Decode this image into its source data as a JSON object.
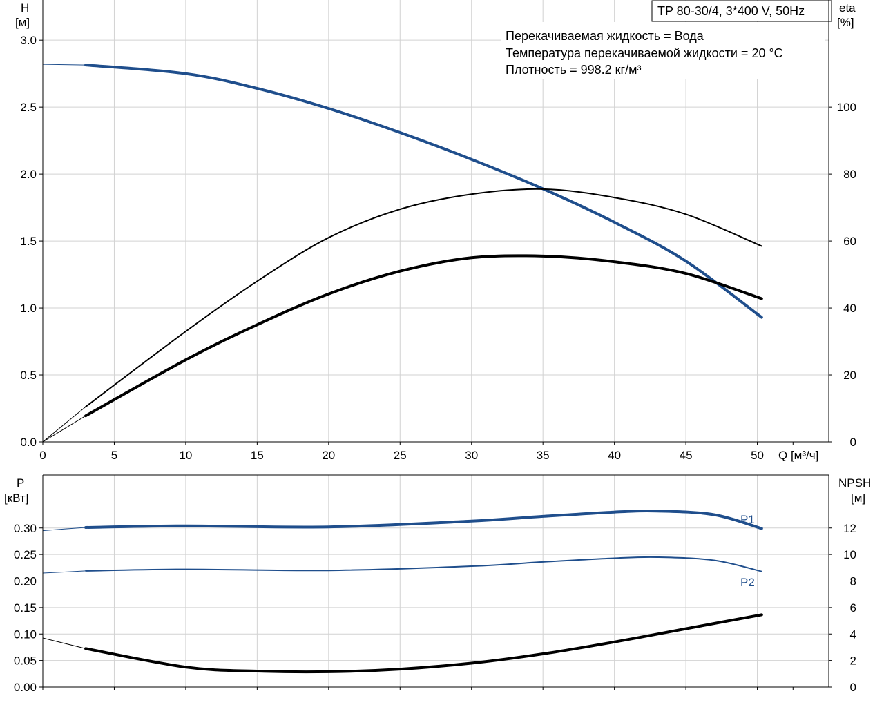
{
  "chart_data": [
    {
      "type": "line",
      "title": "TP 80-30/4, 3*400 V, 50Hz",
      "info_lines": [
        "Перекачиваемая жидкость = Вода",
        "Температура перекачиваемой жидкости = 20 °C",
        "Плотность = 998.2 кг/м³"
      ],
      "xlabel": "Q [м³/ч]",
      "xlim": [
        0,
        55
      ],
      "xticks": [
        0,
        5,
        10,
        15,
        20,
        25,
        30,
        35,
        40,
        45,
        50
      ],
      "y_left": {
        "label_line1": "H",
        "label_line2": "[м]",
        "lim": [
          0,
          3.3
        ],
        "ticks": [
          0.0,
          0.5,
          1.0,
          1.5,
          2.0,
          2.5,
          3.0
        ],
        "tick_labels": [
          "0.0",
          "0.5",
          "1.0",
          "1.5",
          "2.0",
          "2.5",
          "3.0"
        ]
      },
      "y_right": {
        "label_line1": "eta",
        "label_line2": "[%]",
        "lim": [
          0,
          132
        ],
        "ticks": [
          0,
          20,
          40,
          60,
          80,
          100
        ],
        "tick_labels": [
          "0",
          "20",
          "40",
          "60",
          "80",
          "100"
        ]
      },
      "grid": true,
      "series": [
        {
          "axis": "left",
          "color": "#1f4e8c",
          "width": 4,
          "extension": [
            [
              0,
              2.82
            ],
            [
              3,
              2.815
            ]
          ],
          "points": [
            [
              3,
              2.815
            ],
            [
              10,
              2.75
            ],
            [
              15,
              2.64
            ],
            [
              20,
              2.49
            ],
            [
              25,
              2.31
            ],
            [
              30,
              2.11
            ],
            [
              35,
              1.89
            ],
            [
              40,
              1.64
            ],
            [
              45,
              1.35
            ],
            [
              50.3,
              0.93
            ]
          ]
        },
        {
          "axis": "right",
          "color": "#000000",
          "width": 2,
          "extension": [
            [
              0,
              0
            ],
            [
              3,
              10.5
            ]
          ],
          "points": [
            [
              3,
              10.5
            ],
            [
              10,
              33
            ],
            [
              15,
              48
            ],
            [
              20,
              61
            ],
            [
              25,
              69.5
            ],
            [
              30,
              74
            ],
            [
              35,
              75.5
            ],
            [
              40,
              73
            ],
            [
              45,
              68
            ],
            [
              50.3,
              58.5
            ]
          ]
        },
        {
          "axis": "right",
          "color": "#000000",
          "width": 4,
          "extension": [
            [
              0,
              0
            ],
            [
              3,
              7.8
            ]
          ],
          "points": [
            [
              3,
              7.8
            ],
            [
              10,
              24.5
            ],
            [
              15,
              35
            ],
            [
              20,
              44.2
            ],
            [
              25,
              51
            ],
            [
              30,
              55
            ],
            [
              35,
              55.5
            ],
            [
              40,
              53.8
            ],
            [
              45,
              50.3
            ],
            [
              50.3,
              42.8
            ]
          ]
        }
      ]
    },
    {
      "type": "line",
      "xlim": [
        0,
        55
      ],
      "xticks": [
        0,
        5,
        10,
        15,
        20,
        25,
        30,
        35,
        40,
        45,
        50
      ],
      "y_left": {
        "label_line1": "P",
        "label_line2": "[кВт]",
        "lim": [
          0,
          0.4
        ],
        "ticks": [
          0.0,
          0.05,
          0.1,
          0.15,
          0.2,
          0.25,
          0.3
        ],
        "tick_labels": [
          "0.00",
          "0.05",
          "0.10",
          "0.15",
          "0.20",
          "0.25",
          "0.30"
        ]
      },
      "y_right": {
        "label_line1": "NPSH",
        "label_line2": "[м]",
        "lim": [
          0,
          16
        ],
        "ticks": [
          0,
          2,
          4,
          6,
          8,
          10,
          12
        ],
        "tick_labels": [
          "0",
          "2",
          "4",
          "6",
          "8",
          "10",
          "12"
        ]
      },
      "grid": true,
      "series": [
        {
          "name": "P1",
          "axis": "left",
          "color": "#1f4e8c",
          "width": 4,
          "extension": [
            [
              0,
              0.295
            ],
            [
              3,
              0.301
            ]
          ],
          "points": [
            [
              3,
              0.301
            ],
            [
              10,
              0.304
            ],
            [
              20,
              0.302
            ],
            [
              30,
              0.313
            ],
            [
              35,
              0.322
            ],
            [
              40,
              0.33
            ],
            [
              43,
              0.332
            ],
            [
              47,
              0.325
            ],
            [
              50.3,
              0.299
            ]
          ]
        },
        {
          "name": "P2",
          "axis": "left",
          "color": "#1f4e8c",
          "width": 2,
          "extension": [
            [
              0,
              0.215
            ],
            [
              3,
              0.219
            ]
          ],
          "points": [
            [
              3,
              0.219
            ],
            [
              10,
              0.222
            ],
            [
              20,
              0.22
            ],
            [
              30,
              0.228
            ],
            [
              35,
              0.236
            ],
            [
              40,
              0.243
            ],
            [
              43,
              0.245
            ],
            [
              47,
              0.239
            ],
            [
              50.3,
              0.218
            ]
          ]
        },
        {
          "axis": "right",
          "color": "#000000",
          "width": 4,
          "extension": [
            [
              0,
              3.7
            ],
            [
              3,
              2.9
            ]
          ],
          "points": [
            [
              3,
              2.9
            ],
            [
              10,
              1.5
            ],
            [
              15,
              1.2
            ],
            [
              20,
              1.15
            ],
            [
              25,
              1.35
            ],
            [
              30,
              1.8
            ],
            [
              35,
              2.5
            ],
            [
              40,
              3.4
            ],
            [
              45,
              4.4
            ],
            [
              50.3,
              5.45
            ]
          ]
        }
      ]
    }
  ]
}
